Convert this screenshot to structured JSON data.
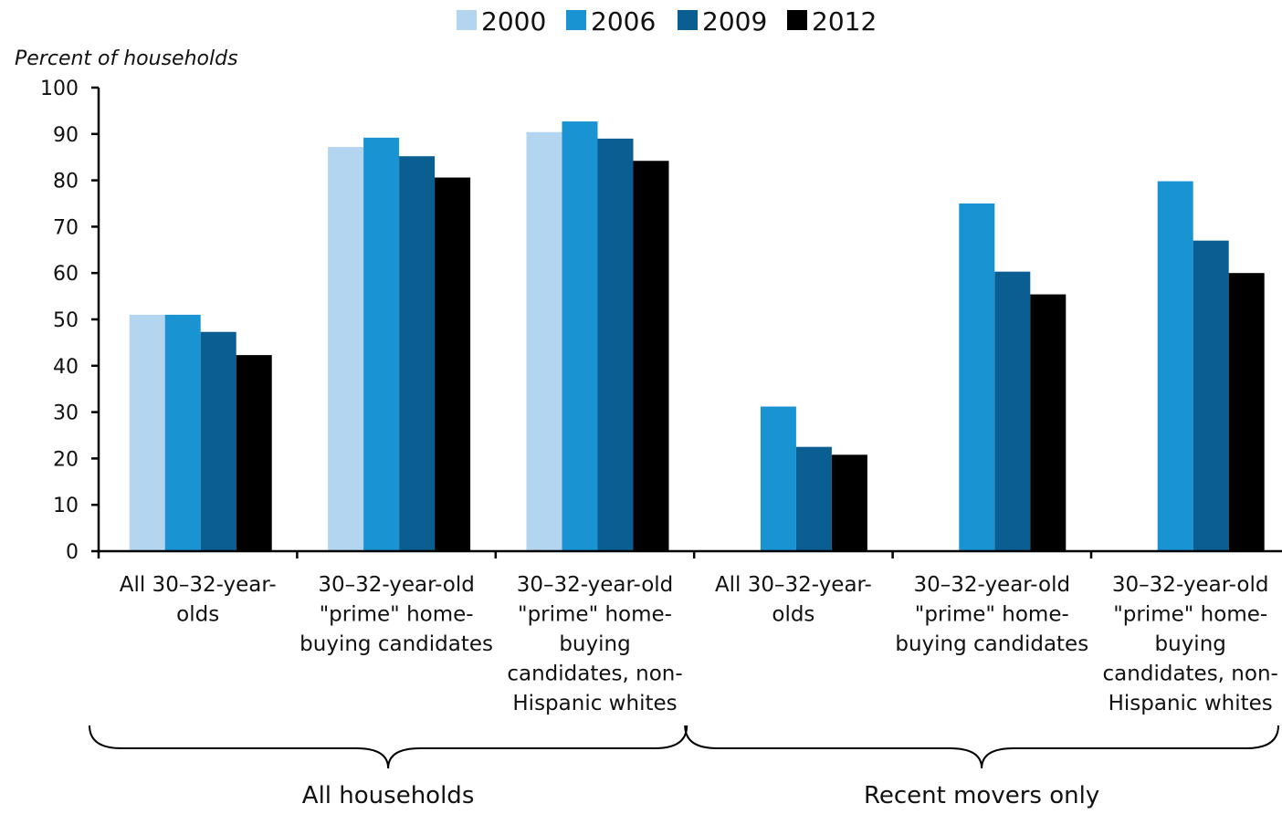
{
  "chart_data": {
    "type": "bar",
    "title": "",
    "ylabel": "Percent of households",
    "xlabel": "",
    "ylim": [
      0,
      100
    ],
    "yticks": [
      0,
      10,
      20,
      30,
      40,
      50,
      60,
      70,
      80,
      90,
      100
    ],
    "legend_position": "top",
    "grid": false,
    "categories": [
      [
        "All 30–32-year-",
        "olds"
      ],
      [
        "30–32-year-old",
        "\"prime\" home-",
        "buying candidates"
      ],
      [
        "30–32-year-old",
        "\"prime\" home-",
        "buying",
        "candidates, non-",
        "Hispanic whites"
      ],
      [
        "All 30–32-year-",
        "olds"
      ],
      [
        "30–32-year-old",
        "\"prime\" home-",
        "buying candidates"
      ],
      [
        "30–32-year-old",
        "\"prime\" home-",
        "buying",
        "candidates, non-",
        "Hispanic whites"
      ]
    ],
    "groups": [
      {
        "label": "All households",
        "category_indices": [
          0,
          1,
          2
        ]
      },
      {
        "label": "Recent movers only",
        "category_indices": [
          3,
          4,
          5
        ]
      }
    ],
    "series": [
      {
        "name": "2000",
        "color": "#b3d5ef",
        "values": [
          51,
          87.2,
          90.4,
          null,
          null,
          null
        ]
      },
      {
        "name": "2006",
        "color": "#1a93d2",
        "values": [
          51,
          89.2,
          92.7,
          31.2,
          75,
          79.8
        ]
      },
      {
        "name": "2009",
        "color": "#0b5e91",
        "values": [
          47.3,
          85.2,
          89,
          22.5,
          60.3,
          67
        ]
      },
      {
        "name": "2012",
        "color": "#000000",
        "values": [
          42.3,
          80.6,
          84.2,
          20.8,
          55.4,
          60
        ]
      }
    ]
  }
}
